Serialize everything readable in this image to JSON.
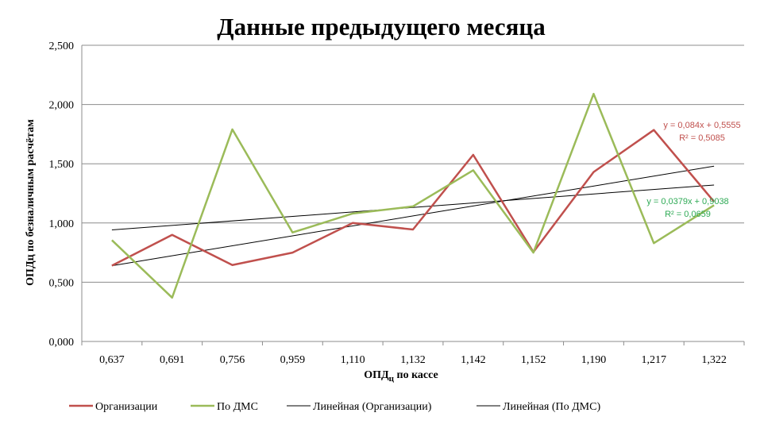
{
  "chart_data": {
    "type": "line",
    "title": "Данные предыдущего месяца",
    "xlabel": "ОПДц по кассе",
    "ylabel": "ОПДц по безналичным расчётам",
    "categories": [
      "0,637",
      "0,691",
      "0,756",
      "0,959",
      "1,110",
      "1,132",
      "1,142",
      "1,152",
      "1,190",
      "1,217",
      "1,322"
    ],
    "ylim": [
      0,
      2.5
    ],
    "yticks": [
      "0,000",
      "0,500",
      "1,000",
      "1,500",
      "2,000",
      "2,500"
    ],
    "ytick_values": [
      0,
      0.5,
      1.0,
      1.5,
      2.0,
      2.5
    ],
    "grid": "horizontal",
    "legend_position": "bottom",
    "series": [
      {
        "name": "Организации",
        "color": "#c0504d",
        "values": [
          0.64,
          0.9,
          0.645,
          0.75,
          1.0,
          0.945,
          1.575,
          0.755,
          1.43,
          1.785,
          1.18
        ]
      },
      {
        "name": "По ДМС",
        "color": "#9bbb59",
        "values": [
          0.855,
          0.37,
          1.79,
          0.92,
          1.08,
          1.14,
          1.445,
          0.75,
          2.09,
          0.83,
          1.15
        ]
      }
    ],
    "trendlines": [
      {
        "name": "Линейная (Организации)",
        "color": "#000000",
        "slope": 0.084,
        "intercept": 0.5555,
        "equation": "y = 0,084x + 0,5555",
        "r2": "R² = 0,5085",
        "label_color": "#c0504d"
      },
      {
        "name": "Линейная (По ДМС)",
        "color": "#000000",
        "slope": 0.0379,
        "intercept": 0.9038,
        "equation": "y = 0,0379x + 0,9038",
        "r2": "R² = 0,0659",
        "label_color": "#2eaa55"
      }
    ]
  }
}
